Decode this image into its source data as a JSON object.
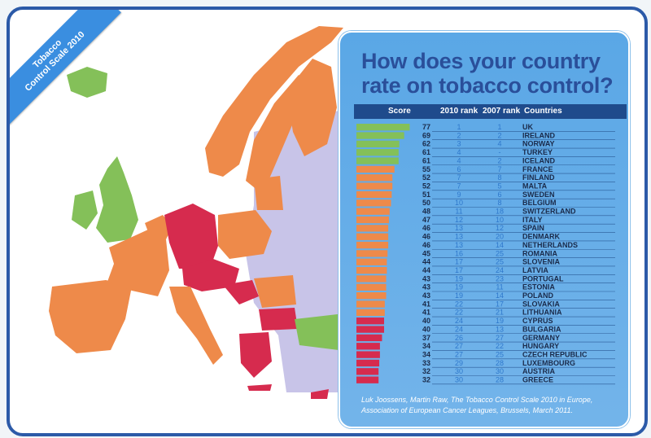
{
  "ribbon": {
    "line1": "Tobacco",
    "line2": "Control Scale 2010"
  },
  "title": {
    "line1": "How does your country",
    "line2": "rate on tobacco control?"
  },
  "headers": {
    "score": "Score",
    "rank2010": "2010 rank",
    "rank2007": "2007 rank",
    "countries": "Countries"
  },
  "source": {
    "line1": "Luk Joossens, Martin Raw, The Tobacco Control Scale 2010 in Europe,",
    "line2": "Association of European Cancer Leagues, Brussels, March 2011."
  },
  "colors": {
    "green": "#84c059",
    "orange": "#ee8a4a",
    "red": "#d62b4e",
    "frame": "#2c5aa8",
    "panel": "#5aa7e6",
    "header": "#1f4b8c",
    "rank_text": "#2f78cc",
    "nonEU": "#c8c4e8"
  },
  "chart_data": {
    "type": "bar",
    "orientation": "horizontal",
    "title": "How does your country rate on tobacco control?",
    "columns": [
      "Score",
      "2010 rank",
      "2007 rank",
      "Countries"
    ],
    "categories": [
      "UK",
      "IRELAND",
      "NORWAY",
      "TURKEY",
      "ICELAND",
      "FRANCE",
      "FINLAND",
      "MALTA",
      "SWEDEN",
      "BELGIUM",
      "SWITZERLAND",
      "ITALY",
      "SPAIN",
      "DENMARK",
      "NETHERLANDS",
      "ROMANIA",
      "SLOVENIA",
      "LATVIA",
      "PORTUGAL",
      "ESTONIA",
      "POLAND",
      "SLOVAKIA",
      "LITHUANIA",
      "CYPRUS",
      "BULGARIA",
      "GERMANY",
      "HUNGARY",
      "CZECH REPUBLIC",
      "LUXEMBOURG",
      "AUSTRIA",
      "GREECE"
    ],
    "values": [
      77,
      69,
      62,
      61,
      61,
      55,
      52,
      52,
      51,
      50,
      48,
      47,
      46,
      46,
      46,
      45,
      44,
      44,
      43,
      43,
      43,
      41,
      41,
      40,
      40,
      37,
      34,
      34,
      33,
      32,
      32
    ],
    "rank_2010": [
      "1",
      "2",
      "3",
      "4",
      "4",
      "6",
      "7",
      "7",
      "9",
      "10",
      "11",
      "12",
      "13",
      "13",
      "13",
      "16",
      "17",
      "17",
      "19",
      "19",
      "19",
      "22",
      "22",
      "24",
      "24",
      "26",
      "27",
      "27",
      "29",
      "30",
      "30"
    ],
    "rank_2007": [
      "1",
      "2",
      "4",
      "-",
      "2",
      "7",
      "8",
      "5",
      "6",
      "8",
      "18",
      "10",
      "12",
      "20",
      "14",
      "25",
      "25",
      "24",
      "23",
      "11",
      "14",
      "17",
      "21",
      "19",
      "13",
      "27",
      "22",
      "25",
      "28",
      "30",
      "28"
    ],
    "bar_colors": [
      "green",
      "green",
      "green",
      "green",
      "green",
      "orange",
      "orange",
      "orange",
      "orange",
      "orange",
      "orange",
      "orange",
      "orange",
      "orange",
      "orange",
      "orange",
      "orange",
      "orange",
      "orange",
      "orange",
      "orange",
      "orange",
      "orange",
      "red",
      "red",
      "red",
      "red",
      "red",
      "red",
      "red",
      "red"
    ],
    "xlim": [
      0,
      80
    ]
  }
}
